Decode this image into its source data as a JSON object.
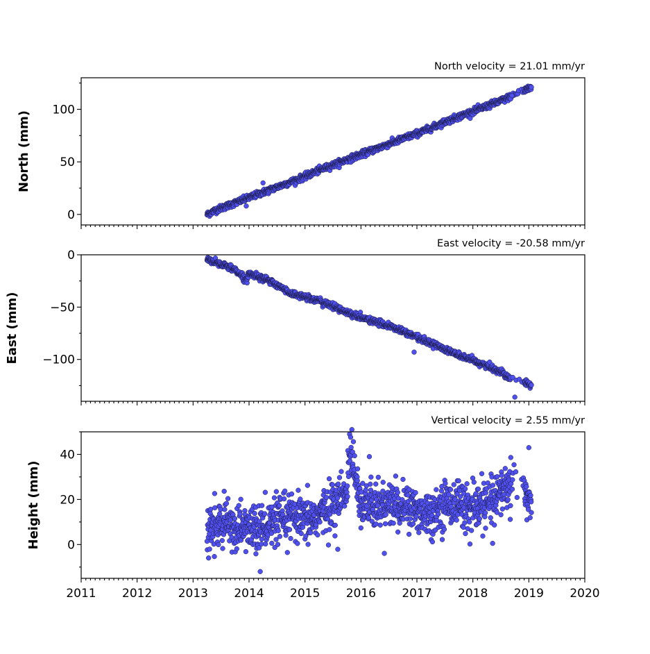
{
  "chart_data": [
    {
      "type": "scatter",
      "title": "North velocity = 21.01 mm/yr",
      "ylabel": "North (mm)",
      "xlim": [
        2011,
        2020
      ],
      "ylim": [
        -10,
        130
      ],
      "yticks": [
        0,
        50,
        100
      ],
      "xticks": [
        2011,
        2012,
        2013,
        2014,
        2015,
        2016,
        2017,
        2018,
        2019,
        2020
      ],
      "show_xtick_labels": false,
      "marker_color": "#5050f0",
      "data_range": {
        "start": 2013.25,
        "end": 2019.05
      },
      "series": [
        {
          "x": [
            2013.25,
            2013.4,
            2013.6,
            2013.8,
            2014.0,
            2014.25,
            2014.5,
            2014.75,
            2015.0,
            2015.25,
            2015.5,
            2015.75,
            2016.0,
            2016.25,
            2016.5,
            2016.75,
            2017.0,
            2017.25,
            2017.5,
            2017.75,
            2018.0,
            2018.25,
            2018.5,
            2018.75,
            2019.0,
            2014.25,
            2013.95,
            2018.7
          ],
          "y": [
            0,
            4,
            8,
            12,
            16,
            21,
            26,
            31,
            36,
            42,
            47,
            52,
            57,
            62,
            67,
            72,
            77,
            82,
            88,
            93,
            98,
            103,
            108,
            114,
            120,
            30,
            8,
            113
          ]
        }
      ]
    },
    {
      "type": "scatter",
      "title": "East velocity = -20.58 mm/yr",
      "ylabel": "East (mm)",
      "xlim": [
        2011,
        2020
      ],
      "ylim": [
        -140,
        0
      ],
      "yticks": [
        0,
        -50,
        -100
      ],
      "xticks": [
        2011,
        2012,
        2013,
        2014,
        2015,
        2016,
        2017,
        2018,
        2019,
        2020
      ],
      "show_xtick_labels": false,
      "marker_color": "#5050f0",
      "data_range": {
        "start": 2013.25,
        "end": 2019.05
      },
      "series": [
        {
          "x": [
            2013.25,
            2013.5,
            2013.75,
            2014.0,
            2014.25,
            2014.5,
            2014.75,
            2015.0,
            2015.25,
            2015.5,
            2015.75,
            2016.0,
            2016.25,
            2016.5,
            2016.75,
            2017.0,
            2017.25,
            2017.5,
            2017.75,
            2018.0,
            2018.25,
            2018.5,
            2018.75,
            2019.0,
            2013.95,
            2016.95,
            2018.75
          ],
          "y": [
            -4,
            -9,
            -14,
            -18,
            -22,
            -29,
            -37,
            -40,
            -44,
            -49,
            -55,
            -60,
            -64,
            -68,
            -73,
            -79,
            -84,
            -90,
            -96,
            -101,
            -106,
            -112,
            -120,
            -124,
            -24,
            -93,
            -136
          ]
        }
      ]
    },
    {
      "type": "scatter",
      "title": "Vertical velocity = 2.55 mm/yr",
      "ylabel": "Height (mm)",
      "xlim": [
        2011,
        2020
      ],
      "ylim": [
        -15,
        50
      ],
      "yticks": [
        0,
        20,
        40
      ],
      "xticks": [
        2011,
        2012,
        2013,
        2014,
        2015,
        2016,
        2017,
        2018,
        2019,
        2020
      ],
      "show_xtick_labels": true,
      "marker_color": "#5050f0",
      "data_range": {
        "start": 2013.25,
        "end": 2019.05
      },
      "series": [
        {
          "x": [
            2013.25,
            2013.5,
            2013.75,
            2014.0,
            2014.25,
            2014.5,
            2014.75,
            2015.0,
            2015.25,
            2015.5,
            2015.75,
            2016.0,
            2016.25,
            2016.5,
            2016.75,
            2017.0,
            2017.25,
            2017.5,
            2017.75,
            2018.0,
            2018.25,
            2018.5,
            2018.75,
            2019.0,
            2015.8,
            2016.15,
            2014.2,
            2019.0
          ],
          "y": [
            7,
            9,
            8,
            7,
            8,
            10,
            12,
            10,
            13,
            18,
            22,
            19,
            16,
            18,
            17,
            15,
            14,
            18,
            19,
            15,
            18,
            24,
            27,
            20,
            45,
            39,
            -12,
            43
          ]
        }
      ]
    }
  ]
}
